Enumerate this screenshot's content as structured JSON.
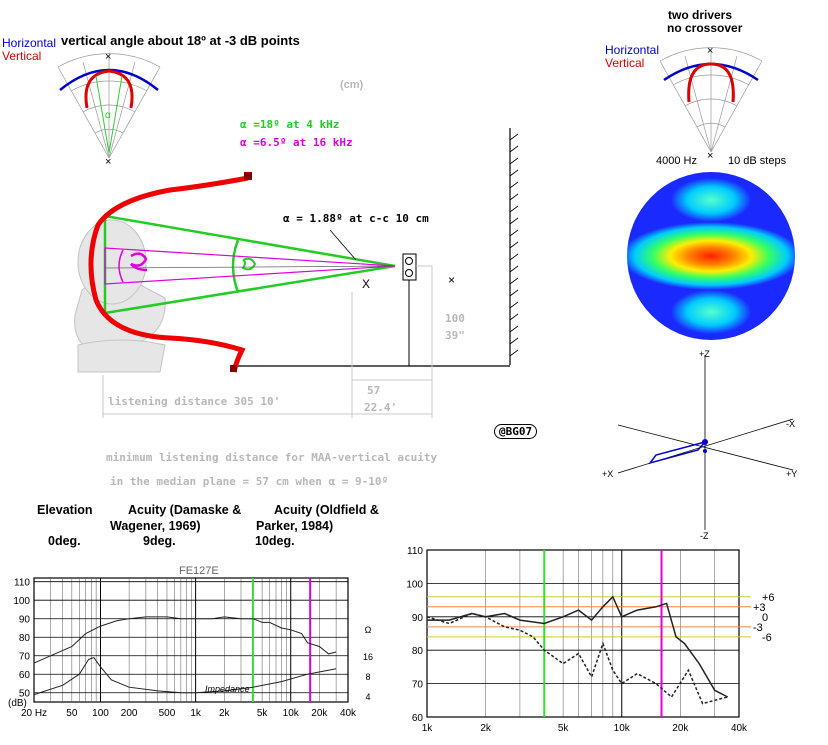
{
  "left_polar": {
    "legend_h": "Horizontal",
    "legend_v": "Vertical",
    "title": "vertical angle about 18º at -3 dB points",
    "alpha": "α"
  },
  "right_polar": {
    "title_1": "two drivers",
    "title_2": "no crossover",
    "legend_h": "Horizontal",
    "legend_v": "Vertical"
  },
  "balloon": {
    "freq": "4000 Hz",
    "steps": "10 dB steps",
    "axes": {
      "z_plus": "+Z",
      "z_minus": "-Z",
      "x_minus": "-X",
      "x_plus": "+X",
      "y_plus": "+Y"
    }
  },
  "diagram": {
    "unit": "(cm)",
    "alpha_green": "α =18º at 4 kHz",
    "alpha_magenta": "α =6.5º at 16 kHz",
    "alpha_cc": "α = 1.88º at c-c 10 cm",
    "height_cm": "100",
    "height_in": "39\"",
    "listening": "listening distance  305   10'",
    "near_cm": "57",
    "near_ft": "22.4'",
    "signature": "@BG07",
    "x_mark": "X"
  },
  "notes": {
    "line1": "minimum listening distance for MAA-vertical acuity",
    "line2": "in the median plane = 57 cm when α = 9-10º"
  },
  "table": {
    "h1": "Elevation",
    "h2a": "Acuity (Damaske &",
    "h2b": "Wagener, 1969)",
    "h3a": "Acuity (Oldfield &",
    "h3b": "Parker, 1984)",
    "v1": "0deg.",
    "v2": "9deg.",
    "v3": "10deg."
  },
  "chart_data": [
    {
      "type": "line",
      "title": "FE127E",
      "xscale": "log",
      "x_ticks": [
        "20 Hz",
        "50",
        "100",
        "200",
        "500",
        "1k",
        "2k",
        "5k",
        "10k",
        "20k",
        "40k"
      ],
      "y_ticks": [
        "110",
        "100",
        "90",
        "80",
        "70",
        "60",
        "50"
      ],
      "ylabel": "(dB)",
      "ylim": [
        45,
        112
      ],
      "right_ticks": [
        "Ω",
        "16",
        "8",
        "4"
      ],
      "annotation": "Impedance",
      "series": [
        {
          "values": [
            [
              20,
              66
            ],
            [
              30,
              70
            ],
            [
              50,
              75
            ],
            [
              70,
              82
            ],
            [
              100,
              86
            ],
            [
              150,
              89
            ],
            [
              200,
              90
            ],
            [
              300,
              91
            ],
            [
              500,
              91
            ],
            [
              700,
              90
            ],
            [
              1000,
              90
            ],
            [
              1500,
              90
            ],
            [
              2000,
              91
            ],
            [
              3000,
              90
            ],
            [
              4000,
              90
            ],
            [
              5000,
              88
            ],
            [
              6000,
              88
            ],
            [
              8000,
              85
            ],
            [
              10000,
              84
            ],
            [
              13000,
              82
            ],
            [
              15000,
              77
            ],
            [
              20000,
              75
            ],
            [
              25000,
              71
            ],
            [
              30000,
              72
            ]
          ]
        },
        {
          "values": [
            [
              20,
              49
            ],
            [
              40,
              54
            ],
            [
              60,
              60
            ],
            [
              75,
              68
            ],
            [
              85,
              69
            ],
            [
              100,
              64
            ],
            [
              130,
              57
            ],
            [
              200,
              53
            ],
            [
              400,
              51
            ],
            [
              700,
              50
            ],
            [
              1000,
              50
            ],
            [
              2000,
              51
            ],
            [
              4000,
              53
            ],
            [
              8000,
              56
            ],
            [
              15000,
              60
            ],
            [
              30000,
              63
            ]
          ]
        }
      ],
      "markers": [
        {
          "x": 4000,
          "color": "#33dd33"
        },
        {
          "x": 16000,
          "color": "#dd00dd"
        }
      ]
    },
    {
      "type": "line",
      "xscale": "log",
      "x_ticks": [
        "1k",
        "2k",
        "5k",
        "10k",
        "20k",
        "40k"
      ],
      "y_ticks": [
        "110",
        "100",
        "90",
        "80",
        "70",
        "60"
      ],
      "ylim": [
        60,
        110
      ],
      "right_labels": [
        "+6",
        "+3",
        "0",
        "-3",
        "-6"
      ],
      "series": [
        {
          "values": [
            [
              1000,
              89
            ],
            [
              1300,
              89
            ],
            [
              1700,
              91
            ],
            [
              2000,
              90
            ],
            [
              2500,
              91
            ],
            [
              3000,
              89
            ],
            [
              4000,
              88
            ],
            [
              5000,
              90
            ],
            [
              6000,
              92
            ],
            [
              7000,
              89
            ],
            [
              8000,
              93
            ],
            [
              9000,
              96
            ],
            [
              10000,
              90
            ],
            [
              12000,
              92
            ],
            [
              15000,
              93
            ],
            [
              17000,
              94
            ],
            [
              19000,
              84
            ],
            [
              21000,
              82
            ],
            [
              25000,
              76
            ],
            [
              30000,
              68
            ],
            [
              35000,
              66
            ]
          ]
        },
        {
          "values": [
            [
              1000,
              90
            ],
            [
              1300,
              88
            ],
            [
              1700,
              91
            ],
            [
              2000,
              90
            ],
            [
              2500,
              87
            ],
            [
              3000,
              86
            ],
            [
              3500,
              84
            ],
            [
              4000,
              80
            ],
            [
              5000,
              76
            ],
            [
              6000,
              79
            ],
            [
              7000,
              72
            ],
            [
              8000,
              82
            ],
            [
              9000,
              74
            ],
            [
              10000,
              70
            ],
            [
              12000,
              73
            ],
            [
              15000,
              70
            ],
            [
              18000,
              66
            ],
            [
              22000,
              74
            ],
            [
              26000,
              64
            ],
            [
              30000,
              65
            ],
            [
              35000,
              66
            ]
          ]
        }
      ],
      "markers": [
        {
          "x": 4000,
          "color": "#33dd33"
        },
        {
          "x": 16000,
          "color": "#dd00dd"
        }
      ]
    }
  ]
}
